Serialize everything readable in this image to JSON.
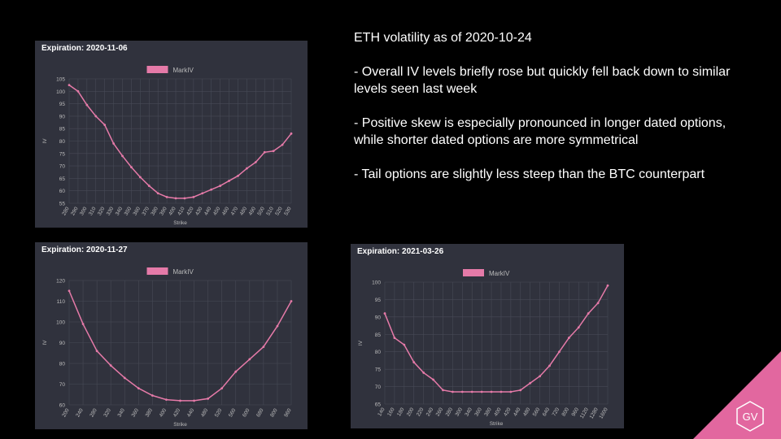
{
  "slide": {
    "title": "ETH volatility as of 2020-10-24",
    "bullets": [
      "- Overall IV levels briefly rose but quickly fell back down to similar levels seen last week",
      "- Positive skew is especially pronounced in longer dated options, while shorter dated options are more symmetrical",
      "- Tail options are slightly less steep than the BTC counterpart"
    ],
    "logo": "GV"
  },
  "chart_data": [
    {
      "type": "line",
      "title": "Expiration: 2020-11-06",
      "x_label": "Strike",
      "y_label": "IV",
      "categories": [
        "280",
        "290",
        "300",
        "310",
        "320",
        "330",
        "340",
        "350",
        "360",
        "370",
        "380",
        "390",
        "400",
        "410",
        "420",
        "430",
        "440",
        "450",
        "460",
        "470",
        "480",
        "490",
        "500",
        "510",
        "520",
        "530"
      ],
      "series": [
        {
          "name": "MarkIV",
          "color": "#e57aa8",
          "values": [
            102.5,
            100,
            94.5,
            90,
            86.5,
            79,
            74,
            69.5,
            65.5,
            62,
            59,
            57.5,
            57,
            57,
            57.5,
            59,
            60.5,
            62,
            64,
            66,
            69,
            71.5,
            75.5,
            76,
            78.5,
            83
          ]
        }
      ],
      "ylim": [
        55,
        105
      ],
      "yticks": [
        55,
        60,
        65,
        70,
        75,
        80,
        85,
        90,
        95,
        100,
        105
      ],
      "grid": true
    },
    {
      "type": "line",
      "title": "Expiration: 2020-11-27",
      "x_label": "Strike",
      "y_label": "IV",
      "categories": [
        "200",
        "240",
        "280",
        "320",
        "340",
        "360",
        "380",
        "400",
        "420",
        "440",
        "480",
        "520",
        "560",
        "600",
        "680",
        "800",
        "960"
      ],
      "series": [
        {
          "name": "MarkIV",
          "color": "#e57aa8",
          "values": [
            115,
            99,
            86,
            79,
            73,
            68,
            64.5,
            62.5,
            62,
            62,
            63,
            68,
            76,
            82,
            88,
            98,
            110
          ]
        }
      ],
      "ylim": [
        60,
        120
      ],
      "yticks": [
        60,
        70,
        80,
        90,
        100,
        110,
        120
      ],
      "grid": true
    },
    {
      "type": "line",
      "title": "Expiration: 2021-03-26",
      "x_label": "Strike",
      "y_label": "IV",
      "categories": [
        "140",
        "160",
        "180",
        "200",
        "220",
        "240",
        "260",
        "280",
        "300",
        "340",
        "360",
        "380",
        "400",
        "420",
        "440",
        "480",
        "560",
        "640",
        "720",
        "800",
        "960",
        "1120",
        "1280",
        "1600"
      ],
      "series": [
        {
          "name": "MarkIV",
          "color": "#e57aa8",
          "values": [
            91,
            84,
            82,
            77,
            74,
            72,
            69,
            68.5,
            68.5,
            68.5,
            68.5,
            68.5,
            68.5,
            68.5,
            69,
            71,
            73,
            76,
            80,
            84,
            87,
            91,
            94,
            99
          ]
        }
      ],
      "ylim": [
        65,
        100
      ],
      "yticks": [
        65,
        70,
        75,
        80,
        85,
        90,
        95,
        100
      ],
      "grid": true
    }
  ]
}
